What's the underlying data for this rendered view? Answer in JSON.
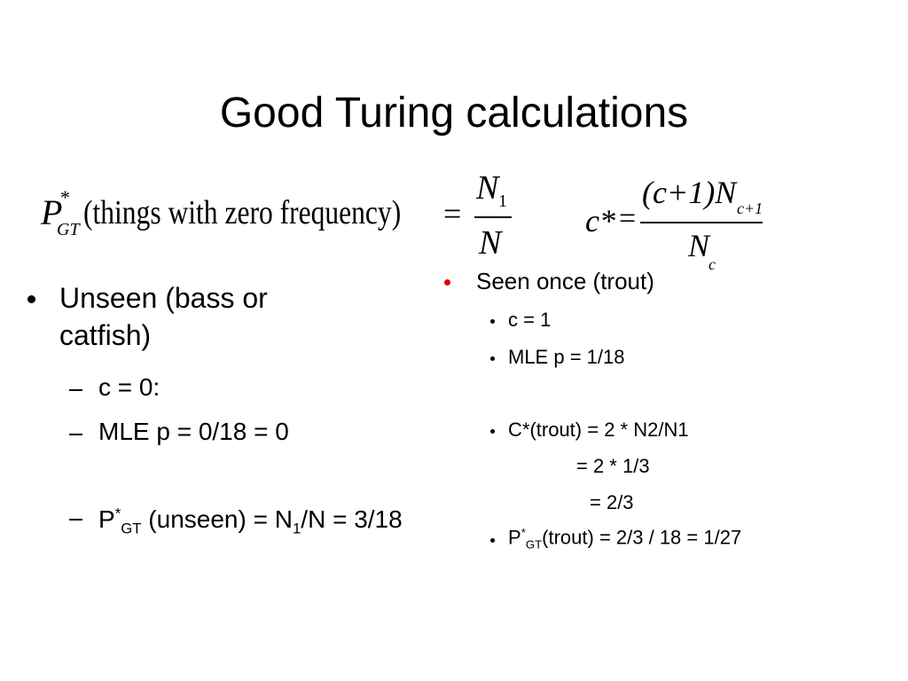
{
  "title": "Good Turing calculations",
  "formula_zero": {
    "p": "P",
    "star": "*",
    "sub": "GT",
    "args": "(things with zero frequency)",
    "equals": "=",
    "numerator": "N",
    "numerator_sub": "1",
    "denominator": "N"
  },
  "formula_cstar": {
    "lhs": "c*",
    "equals": "=",
    "numerator": "(c+1)N",
    "numerator_sub": "c+1",
    "denominator": "N",
    "denominator_sub": "c"
  },
  "left": {
    "heading": "Unseen (bass or catfish)",
    "items": [
      "c = 0:",
      "MLE p = 0/18 = 0"
    ],
    "p_gt": {
      "p": "P",
      "star": "*",
      "sub": "GT",
      "text": " (unseen) = N",
      "n_sub": "1",
      "rest": "/N = 3/18"
    }
  },
  "right": {
    "heading": "Seen once (trout)",
    "items": [
      "c = 1",
      "MLE p = 1/18",
      "C*(trout) = 2 * N2/N1"
    ],
    "continuations": [
      "= 2 * 1/3",
      "= 2/3"
    ],
    "p_gt": {
      "p": "P",
      "star": "*",
      "sub": "GT",
      "text": "(trout) = 2/3 / 18 = 1/27"
    }
  }
}
